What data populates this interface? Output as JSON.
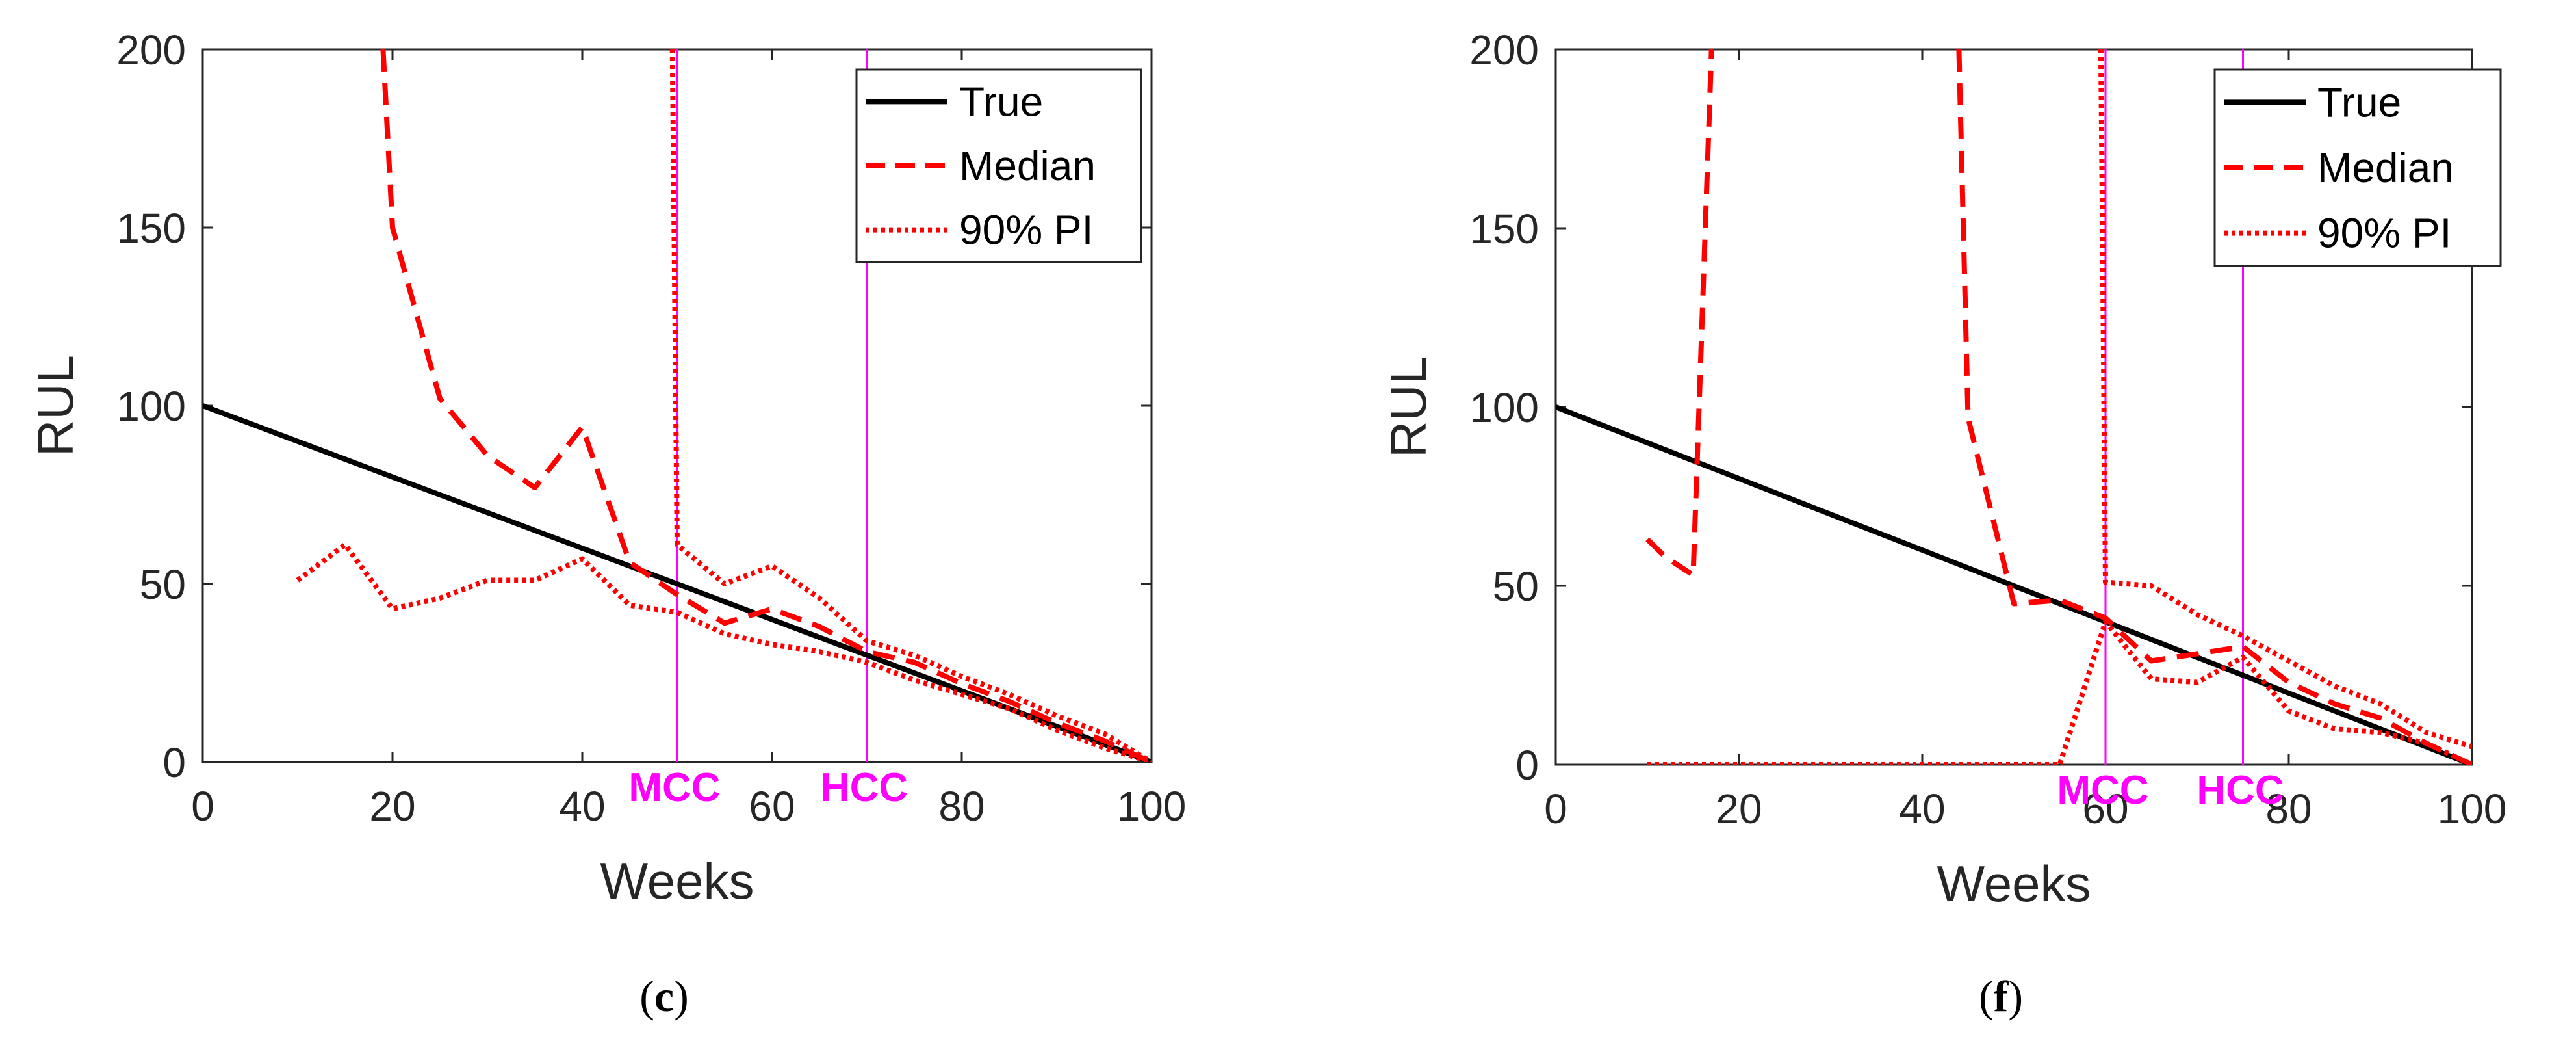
{
  "chart_data": [
    {
      "type": "line",
      "panel_label": "(c)",
      "panel_letter": "c",
      "xlabel": "Weeks",
      "ylabel": "RUL",
      "xlim": [
        0,
        100
      ],
      "ylim": [
        0,
        200
      ],
      "xticks": [
        0,
        20,
        40,
        60,
        80,
        100
      ],
      "yticks": [
        0,
        50,
        100,
        150,
        200
      ],
      "xtick_labels": [
        "0",
        "20",
        "40",
        "60",
        "80",
        "100"
      ],
      "ytick_labels": [
        "0",
        "50",
        "100",
        "150",
        "200"
      ],
      "legend": {
        "placement": "top-right",
        "entries": [
          "True",
          "Median",
          "90% PI"
        ]
      },
      "vlines": [
        {
          "x": 50,
          "label": "MCC",
          "color": "#ff00ff"
        },
        {
          "x": 70,
          "label": "HCC",
          "color": "#ff00ff"
        }
      ],
      "series": [
        {
          "name": "True",
          "style": "solid",
          "color": "#000000",
          "x": [
            0,
            100
          ],
          "y": [
            100,
            0
          ]
        },
        {
          "name": "Median",
          "style": "dashed",
          "color": "#ff0000",
          "x": [
            19,
            20,
            25,
            30,
            35,
            40,
            45,
            50,
            55,
            60,
            65,
            70,
            75,
            80,
            85,
            90,
            95,
            100
          ],
          "y": [
            200,
            150,
            102,
            86,
            77,
            94,
            56,
            47,
            39,
            43,
            38,
            31,
            28,
            22,
            17,
            11,
            6,
            0
          ]
        },
        {
          "name": "90% PI lower",
          "style": "dotted",
          "color": "#ff0000",
          "x": [
            10,
            15,
            20,
            25,
            30,
            35,
            40,
            45,
            50,
            55,
            60,
            65,
            70,
            75,
            80,
            85,
            90,
            95,
            100
          ],
          "y": [
            51,
            61,
            43,
            46,
            51,
            51,
            57,
            44,
            42,
            36,
            33,
            31,
            28,
            23,
            19,
            15,
            9,
            4,
            0
          ]
        },
        {
          "name": "90% PI upper",
          "style": "dotted",
          "color": "#ff0000",
          "x": [
            49.5,
            50,
            55,
            60,
            65,
            70,
            75,
            80,
            85,
            90,
            95,
            100
          ],
          "y": [
            200,
            61,
            50,
            55,
            46,
            34,
            30,
            24,
            19,
            13,
            8,
            0
          ]
        }
      ]
    },
    {
      "type": "line",
      "panel_label": "(f)",
      "panel_letter": "f",
      "xlabel": "Weeks",
      "ylabel": "RUL",
      "xlim": [
        0,
        100
      ],
      "ylim": [
        0,
        200
      ],
      "xticks": [
        0,
        20,
        40,
        60,
        80,
        100
      ],
      "yticks": [
        0,
        50,
        100,
        150,
        200
      ],
      "xtick_labels": [
        "0",
        "20",
        "40",
        "60",
        "80",
        "100"
      ],
      "ytick_labels": [
        "0",
        "50",
        "100",
        "150",
        "200"
      ],
      "legend": {
        "placement": "top-right",
        "entries": [
          "True",
          "Median",
          "90% PI"
        ]
      },
      "vlines": [
        {
          "x": 60,
          "label": "MCC",
          "color": "#ff00ff"
        },
        {
          "x": 75,
          "label": "HCC",
          "color": "#ff00ff"
        }
      ],
      "series": [
        {
          "name": "True",
          "style": "solid",
          "color": "#000000",
          "x": [
            0,
            100
          ],
          "y": [
            100,
            0
          ]
        },
        {
          "name": "Median",
          "style": "dashed",
          "color": "#ff0000",
          "x": [
            10,
            12,
            15,
            17
          ],
          "y": [
            63,
            58,
            53,
            200
          ]
        },
        {
          "name": "Median (late)",
          "style": "dashed",
          "color": "#ff0000",
          "x": [
            44,
            45,
            50,
            55,
            60,
            65,
            70,
            75,
            80,
            85,
            90,
            95,
            100
          ],
          "y": [
            200,
            97,
            45,
            46,
            41,
            29,
            31,
            33,
            23,
            17,
            13,
            6,
            0
          ]
        },
        {
          "name": "90% PI lower",
          "style": "dotted",
          "color": "#ff0000",
          "x": [
            10,
            20,
            30,
            40,
            50,
            55,
            60,
            65,
            70,
            75,
            80,
            85,
            90,
            95,
            100
          ],
          "y": [
            0,
            0,
            0,
            0,
            0,
            0,
            40,
            24,
            23,
            30,
            15,
            10,
            9,
            6,
            0
          ]
        },
        {
          "name": "90% PI upper",
          "style": "dotted",
          "color": "#ff0000",
          "x": [
            59.5,
            60,
            65,
            70,
            75,
            80,
            85,
            90,
            95,
            100
          ],
          "y": [
            200,
            51,
            50,
            42,
            36,
            29,
            22,
            17,
            9,
            5
          ]
        }
      ]
    }
  ]
}
